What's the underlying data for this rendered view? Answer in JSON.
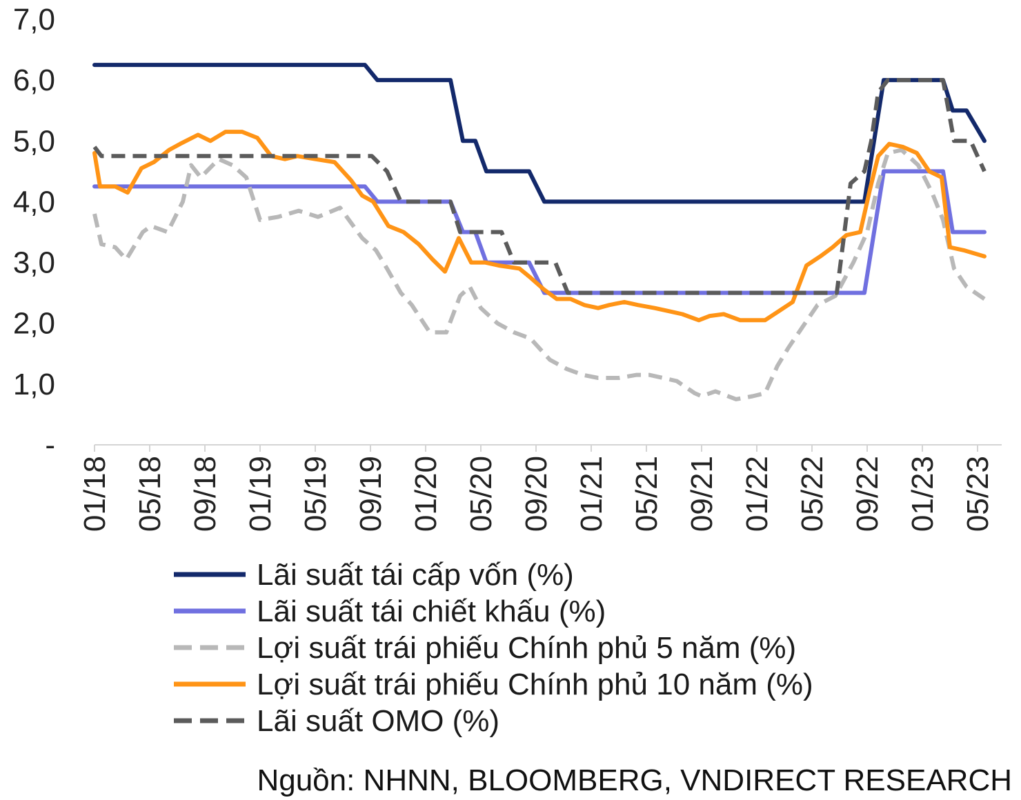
{
  "chart_data": {
    "type": "line",
    "title": "",
    "xlabel": "",
    "ylabel": "",
    "ylim": [
      0,
      7
    ],
    "y_ticks": [
      "-",
      "1,0",
      "2,0",
      "3,0",
      "4,0",
      "5,0",
      "6,0",
      "7,0"
    ],
    "x_ticks": [
      "01/18",
      "05/18",
      "09/18",
      "01/19",
      "05/19",
      "09/19",
      "01/20",
      "05/20",
      "09/20",
      "01/21",
      "05/21",
      "09/21",
      "01/22",
      "05/22",
      "09/22",
      "01/23",
      "05/23"
    ],
    "x_range": [
      0,
      65
    ],
    "grid": false,
    "legend_position": "bottom",
    "series": [
      {
        "name": "Lãi suất tái cấp vốn (%)",
        "color": "#13296b",
        "dash": "solid",
        "points": [
          [
            0,
            6.25
          ],
          [
            19.6,
            6.25
          ],
          [
            20.5,
            6.0
          ],
          [
            25.8,
            6.0
          ],
          [
            26.7,
            5.0
          ],
          [
            27.6,
            5.0
          ],
          [
            28.4,
            4.5
          ],
          [
            31.5,
            4.5
          ],
          [
            32.6,
            4.0
          ],
          [
            55.8,
            4.0
          ],
          [
            57.2,
            6.0
          ],
          [
            61.5,
            6.0
          ],
          [
            62.2,
            5.5
          ],
          [
            63.2,
            5.5
          ],
          [
            64.5,
            5.0
          ]
        ]
      },
      {
        "name": "Lãi suất tái chiết khấu (%)",
        "color": "#7070e0",
        "dash": "solid",
        "points": [
          [
            0,
            4.25
          ],
          [
            19.6,
            4.25
          ],
          [
            20.5,
            4.0
          ],
          [
            25.8,
            4.0
          ],
          [
            26.7,
            3.5
          ],
          [
            27.6,
            3.5
          ],
          [
            28.4,
            3.0
          ],
          [
            31.5,
            3.0
          ],
          [
            32.6,
            2.5
          ],
          [
            55.8,
            2.5
          ],
          [
            57.2,
            4.5
          ],
          [
            61.5,
            4.5
          ],
          [
            62.2,
            3.5
          ],
          [
            64.5,
            3.5
          ]
        ]
      },
      {
        "name": "Lợi suất trái phiếu Chính phủ 5 năm (%)",
        "color": "#b8b8b8",
        "dash": "dashed",
        "points": [
          [
            0,
            3.8
          ],
          [
            0.5,
            3.3
          ],
          [
            1.5,
            3.25
          ],
          [
            2.3,
            3.05
          ],
          [
            3.5,
            3.5
          ],
          [
            4.1,
            3.6
          ],
          [
            5.3,
            3.5
          ],
          [
            6.4,
            4.0
          ],
          [
            7.0,
            4.6
          ],
          [
            7.7,
            4.4
          ],
          [
            9.0,
            4.7
          ],
          [
            10.0,
            4.6
          ],
          [
            11.0,
            4.4
          ],
          [
            12.0,
            3.7
          ],
          [
            13.3,
            3.75
          ],
          [
            14.8,
            3.85
          ],
          [
            16.2,
            3.75
          ],
          [
            17.8,
            3.9
          ],
          [
            19.4,
            3.4
          ],
          [
            20.4,
            3.2
          ],
          [
            21.2,
            2.9
          ],
          [
            22.2,
            2.5
          ],
          [
            23.0,
            2.3
          ],
          [
            24.3,
            1.85
          ],
          [
            25.5,
            1.85
          ],
          [
            26.5,
            2.45
          ],
          [
            27.2,
            2.6
          ],
          [
            28.0,
            2.25
          ],
          [
            29.2,
            2.0
          ],
          [
            30.4,
            1.85
          ],
          [
            31.6,
            1.75
          ],
          [
            33.0,
            1.4
          ],
          [
            34.2,
            1.25
          ],
          [
            35.4,
            1.15
          ],
          [
            36.5,
            1.1
          ],
          [
            38.0,
            1.1
          ],
          [
            39.3,
            1.15
          ],
          [
            40.2,
            1.15
          ],
          [
            42.2,
            1.05
          ],
          [
            43.5,
            0.85
          ],
          [
            44.0,
            0.8
          ],
          [
            45.0,
            0.88
          ],
          [
            46.5,
            0.75
          ],
          [
            47.7,
            0.8
          ],
          [
            48.6,
            0.85
          ],
          [
            49.5,
            1.3
          ],
          [
            50.3,
            1.6
          ],
          [
            51.5,
            2.0
          ],
          [
            52.4,
            2.3
          ],
          [
            53.7,
            2.45
          ],
          [
            55.0,
            3.0
          ],
          [
            56.0,
            3.5
          ],
          [
            56.8,
            4.3
          ],
          [
            57.5,
            4.8
          ],
          [
            58.5,
            4.85
          ],
          [
            59.7,
            4.6
          ],
          [
            60.7,
            4.15
          ],
          [
            61.5,
            3.7
          ],
          [
            62.3,
            2.9
          ],
          [
            63.2,
            2.6
          ],
          [
            64.5,
            2.4
          ]
        ]
      },
      {
        "name": "Lợi suất trái phiếu Chính phủ 10 năm (%)",
        "color": "#ff9416",
        "dash": "solid",
        "points": [
          [
            0,
            4.8
          ],
          [
            0.4,
            4.25
          ],
          [
            1.5,
            4.25
          ],
          [
            2.4,
            4.15
          ],
          [
            3.4,
            4.55
          ],
          [
            4.3,
            4.65
          ],
          [
            5.4,
            4.85
          ],
          [
            6.2,
            4.95
          ],
          [
            7.5,
            5.1
          ],
          [
            8.4,
            5.0
          ],
          [
            9.5,
            5.15
          ],
          [
            10.7,
            5.15
          ],
          [
            11.8,
            5.05
          ],
          [
            12.8,
            4.75
          ],
          [
            13.8,
            4.7
          ],
          [
            14.7,
            4.75
          ],
          [
            16.0,
            4.7
          ],
          [
            17.4,
            4.65
          ],
          [
            18.6,
            4.35
          ],
          [
            19.4,
            4.1
          ],
          [
            20.2,
            4.0
          ],
          [
            21.3,
            3.6
          ],
          [
            22.4,
            3.5
          ],
          [
            23.5,
            3.3
          ],
          [
            24.5,
            3.05
          ],
          [
            25.4,
            2.85
          ],
          [
            26.4,
            3.4
          ],
          [
            27.3,
            3.0
          ],
          [
            28.3,
            3.0
          ],
          [
            29.3,
            2.95
          ],
          [
            30.8,
            2.9
          ],
          [
            31.6,
            2.75
          ],
          [
            32.6,
            2.55
          ],
          [
            33.5,
            2.4
          ],
          [
            34.5,
            2.4
          ],
          [
            35.5,
            2.3
          ],
          [
            36.5,
            2.25
          ],
          [
            37.3,
            2.3
          ],
          [
            38.4,
            2.35
          ],
          [
            39.4,
            2.3
          ],
          [
            40.6,
            2.25
          ],
          [
            41.6,
            2.2
          ],
          [
            42.6,
            2.15
          ],
          [
            43.8,
            2.05
          ],
          [
            44.6,
            2.12
          ],
          [
            45.6,
            2.15
          ],
          [
            46.8,
            2.05
          ],
          [
            48.6,
            2.05
          ],
          [
            49.6,
            2.2
          ],
          [
            50.6,
            2.35
          ],
          [
            51.6,
            2.95
          ],
          [
            52.6,
            3.1
          ],
          [
            53.5,
            3.25
          ],
          [
            54.5,
            3.45
          ],
          [
            55.5,
            3.5
          ],
          [
            56.2,
            4.2
          ],
          [
            56.8,
            4.75
          ],
          [
            57.6,
            4.95
          ],
          [
            58.6,
            4.9
          ],
          [
            59.6,
            4.8
          ],
          [
            60.5,
            4.5
          ],
          [
            61.4,
            4.4
          ],
          [
            62.0,
            3.25
          ],
          [
            63.0,
            3.2
          ],
          [
            64.5,
            3.1
          ]
        ]
      },
      {
        "name": "Lãi suất OMO (%)",
        "color": "#5b5b5b",
        "dash": "dashed",
        "points": [
          [
            0,
            4.9
          ],
          [
            0.5,
            4.75
          ],
          [
            20.1,
            4.75
          ],
          [
            21.2,
            4.5
          ],
          [
            22.2,
            4.0
          ],
          [
            25.8,
            4.0
          ],
          [
            26.5,
            3.5
          ],
          [
            29.5,
            3.5
          ],
          [
            30.4,
            3.0
          ],
          [
            33.4,
            3.0
          ],
          [
            34.3,
            2.5
          ],
          [
            53.8,
            2.5
          ],
          [
            54.8,
            4.3
          ],
          [
            55.8,
            4.5
          ],
          [
            56.3,
            5.0
          ],
          [
            56.8,
            5.8
          ],
          [
            57.5,
            6.0
          ],
          [
            61.5,
            6.0
          ],
          [
            62.3,
            5.0
          ],
          [
            63.5,
            5.0
          ],
          [
            64.5,
            4.5
          ]
        ]
      }
    ]
  },
  "source": "Nguồn: NHNN, BLOOMBERG, VNDIRECT RESEARCH"
}
